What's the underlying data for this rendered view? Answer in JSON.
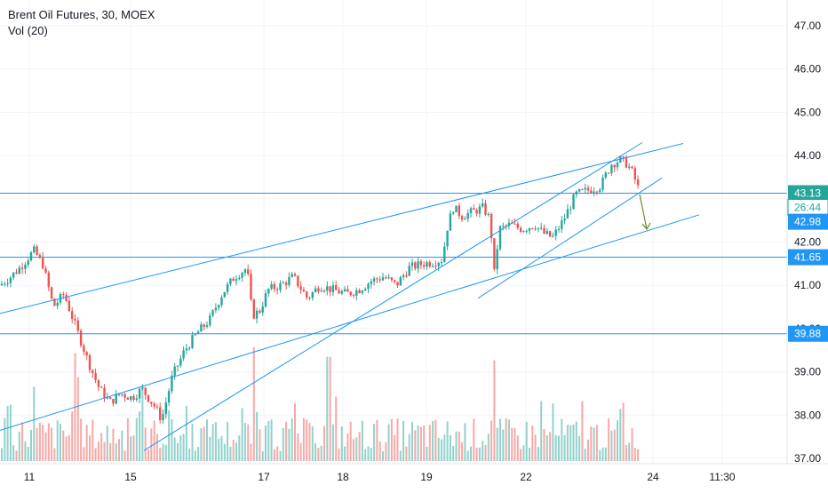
{
  "legend": {
    "title": "Brent Oil Futures, 30, MOEX",
    "indicator": "Vol (20)"
  },
  "colors": {
    "up": "#26a69a",
    "down": "#ef5350",
    "line": "#2196f3",
    "grid": "#f0f3fa",
    "axis_text": "#131722",
    "badge_current": "#26a69a",
    "badge_level": "#2196f3",
    "arrow": "#6b8e23"
  },
  "chart_data": {
    "type": "candlestick",
    "title": "Brent Oil Futures, 30, MOEX",
    "ylim": [
      36.95,
      47.6
    ],
    "y_ticks": [
      "37.00",
      "38.00",
      "39.00",
      "40.00",
      "41.00",
      "42.00",
      "43.00",
      "44.00",
      "45.00",
      "46.00",
      "47.00"
    ],
    "x_ticks": [
      "11",
      "15",
      "17",
      "18",
      "19",
      "22",
      "24",
      "11:30"
    ],
    "price_levels": [
      {
        "label": "43.13",
        "value": 43.13,
        "style": "current"
      },
      {
        "label": "26:44",
        "value": 42.8,
        "style": "countdown"
      },
      {
        "label": "42.98",
        "value": 42.47,
        "style": "level"
      },
      {
        "label": "41.65",
        "value": 41.65,
        "style": "level"
      },
      {
        "label": "39.88",
        "value": 39.88,
        "style": "level"
      }
    ],
    "horizontal_lines": [
      43.13,
      41.65,
      39.88
    ],
    "trend_lines": [
      {
        "from": [
          0,
          40.35
        ],
        "to": [
          769,
          44.28
        ]
      },
      {
        "from": [
          0,
          37.65
        ],
        "to": [
          787,
          42.63
        ]
      },
      {
        "from": [
          162,
          37.18
        ],
        "to": [
          723,
          44.3
        ]
      },
      {
        "from": [
          538,
          40.7
        ],
        "to": [
          745,
          43.48
        ]
      }
    ],
    "arrow": {
      "from": [
        720,
        43.1
      ],
      "to": [
        728,
        42.3
      ]
    },
    "anchors": [
      [
        0,
        41.0
      ],
      [
        12,
        41.2
      ],
      [
        22,
        41.4
      ],
      [
        38,
        41.8
      ],
      [
        48,
        41.5
      ],
      [
        60,
        40.5
      ],
      [
        72,
        40.8
      ],
      [
        86,
        40.0
      ],
      [
        100,
        39.2
      ],
      [
        112,
        38.6
      ],
      [
        124,
        38.3
      ],
      [
        136,
        38.5
      ],
      [
        148,
        38.4
      ],
      [
        160,
        38.6
      ],
      [
        174,
        38.2
      ],
      [
        182,
        37.9
      ],
      [
        194,
        38.9
      ],
      [
        208,
        39.5
      ],
      [
        222,
        39.9
      ],
      [
        236,
        40.2
      ],
      [
        250,
        40.8
      ],
      [
        264,
        41.2
      ],
      [
        278,
        41.4
      ],
      [
        284,
        40.3
      ],
      [
        292,
        40.4
      ],
      [
        302,
        40.9
      ],
      [
        316,
        41.0
      ],
      [
        330,
        41.2
      ],
      [
        346,
        40.7
      ],
      [
        360,
        41.0
      ],
      [
        374,
        40.9
      ],
      [
        390,
        40.8
      ],
      [
        404,
        40.9
      ],
      [
        418,
        41.1
      ],
      [
        432,
        41.2
      ],
      [
        446,
        41.0
      ],
      [
        460,
        41.4
      ],
      [
        476,
        41.5
      ],
      [
        490,
        41.55
      ],
      [
        498,
        41.6
      ],
      [
        503,
        42.3
      ],
      [
        510,
        42.8
      ],
      [
        520,
        42.6
      ],
      [
        532,
        42.7
      ],
      [
        544,
        42.8
      ],
      [
        552,
        42.5
      ],
      [
        556,
        41.2
      ],
      [
        562,
        42.3
      ],
      [
        574,
        42.4
      ],
      [
        588,
        42.3
      ],
      [
        602,
        42.4
      ],
      [
        612,
        42.2
      ],
      [
        622,
        42.1
      ],
      [
        634,
        42.5
      ],
      [
        648,
        43.1
      ],
      [
        662,
        43.2
      ],
      [
        676,
        43.3
      ],
      [
        688,
        43.8
      ],
      [
        698,
        43.9
      ],
      [
        706,
        43.8
      ],
      [
        712,
        43.6
      ],
      [
        720,
        43.15
      ]
    ],
    "volume_peaks": [
      {
        "x": 286,
        "ratio": 0.95
      },
      {
        "x": 370,
        "ratio": 0.87
      },
      {
        "x": 556,
        "ratio": 0.84
      },
      {
        "x": 38,
        "ratio": 0.62
      },
      {
        "x": 86,
        "ratio": 0.7
      },
      {
        "x": 160,
        "ratio": 0.62
      }
    ]
  }
}
